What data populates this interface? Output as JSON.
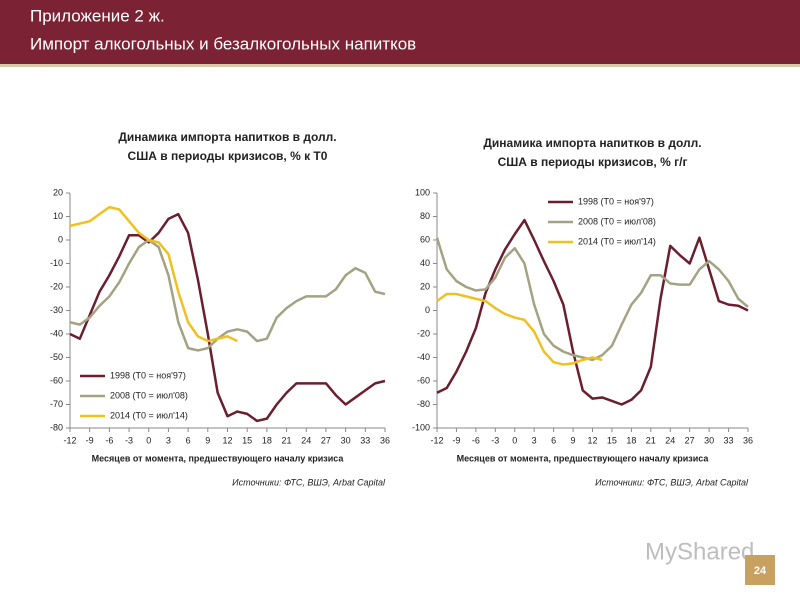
{
  "header": {
    "line1": "Приложение 2 ж.",
    "line2": "Импорт алкогольных и безалкогольных напитков"
  },
  "watermark": "MyShared",
  "page_number": "24",
  "chart_data": [
    {
      "type": "line",
      "title": [
        "Динамика импорта напитков в долл.",
        "США в периоды кризисов, % к Т0"
      ],
      "x_label": "Месяцев от момента, предшествующего началу кризиса",
      "source": "Источники: ФТС, ВШЭ, Arbat Capital",
      "legend": "lower left",
      "x": [
        -12,
        -10.5,
        -9,
        -7.5,
        -6,
        -4.5,
        -3,
        -1.5,
        0,
        1.5,
        3,
        4.5,
        6,
        7.5,
        9,
        10.5,
        12,
        13.5,
        15,
        16.5,
        18,
        19.5,
        21,
        22.5,
        24,
        25.5,
        27,
        28.5,
        30,
        31.5,
        33,
        34.5,
        36
      ],
      "xlim": [
        -12,
        36
      ],
      "xticks": [
        -12,
        -9,
        -6,
        -3,
        0,
        3,
        6,
        9,
        12,
        15,
        18,
        21,
        24,
        27,
        30,
        33,
        36
      ],
      "ylim": [
        -80,
        20
      ],
      "yticks": [
        -80,
        -70,
        -60,
        -50,
        -40,
        -30,
        -20,
        -10,
        0,
        10,
        20
      ],
      "series": [
        {
          "name": "1998 (Т0 = ноя'97)",
          "color": "#6b1f2e",
          "values": [
            -40,
            -42,
            -32,
            -22,
            -15,
            -7,
            2,
            2,
            -1,
            3,
            9,
            11,
            3,
            -17,
            -40,
            -65,
            -75,
            -73,
            -74,
            -77,
            -76,
            -70,
            -65,
            -61,
            -61,
            -61,
            -61,
            -66,
            -70,
            -67,
            -64,
            -61,
            -60
          ]
        },
        {
          "name": "2008 (Т0 = июл'08)",
          "color": "#a3a383",
          "values": [
            -35,
            -36,
            -33,
            -28,
            -24,
            -18,
            -10,
            -3,
            0,
            -3,
            -15,
            -35,
            -46,
            -47,
            -46,
            -42,
            -39,
            -38,
            -39,
            -43,
            -42,
            -33,
            -29,
            -26,
            -24,
            -24,
            -24,
            -21,
            -15,
            -12,
            -14,
            -22,
            -23
          ]
        },
        {
          "name": "2014 (Т0 = июл'14)",
          "color": "#f0c020",
          "values": [
            6,
            7,
            8,
            11,
            14,
            13,
            8,
            3,
            0,
            -1,
            -6,
            -22,
            -35,
            -41,
            -43,
            -42,
            -41,
            -43,
            null,
            null,
            null,
            null,
            null,
            null,
            null,
            null,
            null,
            null,
            null,
            null,
            null,
            null,
            null
          ]
        }
      ]
    },
    {
      "type": "line",
      "title": [
        "Динамика импорта напитков в долл.",
        "США в периоды кризисов, % г/г"
      ],
      "x_label": "Месяцев от момента, предшествующего началу кризиса",
      "source": "Источники: ФТС, ВШЭ, Arbat Capital",
      "legend": "upper left",
      "x": [
        -12,
        -10.5,
        -9,
        -7.5,
        -6,
        -4.5,
        -3,
        -1.5,
        0,
        1.5,
        3,
        4.5,
        6,
        7.5,
        9,
        10.5,
        12,
        13.5,
        15,
        16.5,
        18,
        19.5,
        21,
        22.5,
        24,
        25.5,
        27,
        28.5,
        30,
        31.5,
        33,
        34.5,
        36
      ],
      "xlim": [
        -12,
        36
      ],
      "xticks": [
        -12,
        -9,
        -6,
        -3,
        0,
        3,
        6,
        9,
        12,
        15,
        18,
        21,
        24,
        27,
        30,
        33,
        36
      ],
      "ylim": [
        -100,
        100
      ],
      "yticks": [
        -100,
        -80,
        -60,
        -40,
        -20,
        0,
        20,
        40,
        60,
        80,
        100
      ],
      "series": [
        {
          "name": "1998 (Т0 = ноя'97)",
          "color": "#6b1f2e",
          "values": [
            -70,
            -66,
            -52,
            -35,
            -15,
            15,
            35,
            52,
            65,
            77,
            60,
            42,
            25,
            5,
            -35,
            -68,
            -75,
            -74,
            -77,
            -80,
            -76,
            -68,
            -48,
            10,
            55,
            47,
            40,
            62,
            35,
            8,
            5,
            4,
            0
          ]
        },
        {
          "name": "2008 (Т0 = июл'08)",
          "color": "#a3a383",
          "values": [
            62,
            35,
            25,
            20,
            17,
            18,
            28,
            45,
            53,
            40,
            5,
            -20,
            -30,
            -35,
            -38,
            -40,
            -42,
            -38,
            -30,
            -12,
            5,
            15,
            30,
            30,
            23,
            22,
            22,
            35,
            42,
            35,
            25,
            10,
            3
          ]
        },
        {
          "name": "2014 (Т0 = июл'14)",
          "color": "#f0c020",
          "values": [
            8,
            14,
            14,
            12,
            10,
            8,
            2,
            -3,
            -6,
            -8,
            -18,
            -35,
            -44,
            -46,
            -45,
            -42,
            -40,
            -42,
            null,
            null,
            null,
            null,
            null,
            null,
            null,
            null,
            null,
            null,
            null,
            null,
            null,
            null,
            null
          ]
        }
      ]
    }
  ]
}
